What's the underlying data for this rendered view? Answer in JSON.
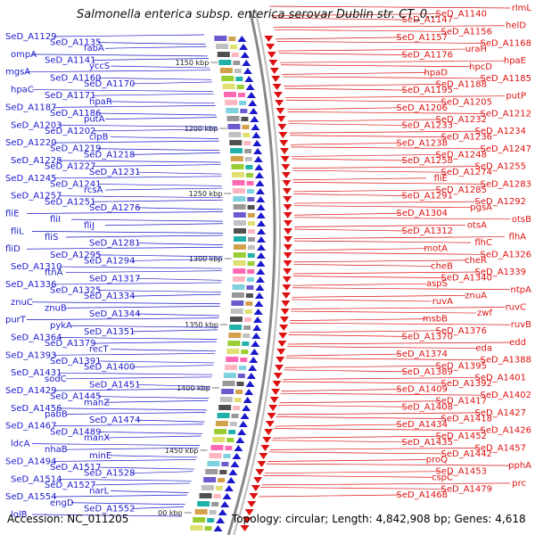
{
  "title": "Salmonella enterica subsp. enterica serovar Dublin str. CT_0...",
  "footer": {
    "accession": "Accession: NC_011205",
    "info": "Topology: circular; Length: 4,842,908 bp; Genes: 4,618"
  },
  "colors": {
    "left_strand": "#1a1acc",
    "right_strand": "#dd1111",
    "backbone": "#888888"
  },
  "kbp_markers": [
    "1150 kbp",
    "1200 kbp",
    "1250 kbp",
    "1300 kbp",
    "1350 kbp",
    "1400 kbp",
    "1450 kbp",
    "00 kbp"
  ],
  "left_labels": [
    "SeD_A1129",
    "SeD_A1135",
    "fabA",
    "ompA",
    "SeD_A1141",
    "yccS",
    "mgsA",
    "SeD_A1160",
    "SeD_A1170",
    "hpaC",
    "SeD_A1171",
    "hpaR",
    "SeD_A1187",
    "SeD_A1186",
    "putA",
    "SeD_A1203",
    "SeD_A1202",
    "clpB",
    "SeD_A1220",
    "SeD_A1219",
    "SeD_A1218",
    "SeD_A1228",
    "SeD_A1227",
    "SeD_A1231",
    "SeD_A1245",
    "SeD_A1241",
    "rcsA",
    "SeD_A1257",
    "SeD_A1251",
    "SeD_A1276",
    "fliE",
    "fliI",
    "fliJ",
    "fliL",
    "fliS",
    "SeD_A1281",
    "fliD",
    "SeD_A1295",
    "SeD_A1294",
    "SeD_A1310",
    "ftnA",
    "SeD_A1317",
    "SeD_A1336",
    "SeD_A1325",
    "SeD_A1334",
    "znuC",
    "znuB",
    "SeD_A1344",
    "purT",
    "pykA",
    "SeD_A1351",
    "SeD_A1364",
    "SeD_A1379",
    "recT",
    "SeD_A1393",
    "SeD_A1391",
    "SeD_A1400",
    "SeD_A1431",
    "sodC",
    "SeD_A1451",
    "SeD_A1429",
    "SeD_A1445",
    "manZ",
    "SeD_A1456",
    "pabB",
    "SeD_A1474",
    "SeD_A1467",
    "SeD_A1489",
    "manX",
    "ldcA",
    "nhaB",
    "minE",
    "SeD_A1494",
    "SeD_A1517",
    "SeD_A1528",
    "SeD_A1514",
    "SeD_A1527",
    "narL",
    "SeD_A1554",
    "engD",
    "SeD_A1552",
    "lolB"
  ],
  "right_labels": [
    "rlmL",
    "SeD_A1140",
    "SeD_A1147",
    "helD",
    "SeD_A1156",
    "SeD_A1157",
    "SeD_A1168",
    "uraH",
    "SeD_A1176",
    "hpaE",
    "hpcD",
    "hpaD",
    "SeD_A1185",
    "SeD_A1188",
    "SeD_A1195",
    "putP",
    "SeD_A1205",
    "SeD_A1206",
    "SeD_A1212",
    "SeD_A1232",
    "SeD_A1233",
    "SeD_A1234",
    "SeD_A1236",
    "SeD_A1238",
    "SeD_A1247",
    "SeD_A1248",
    "SeD_A1258",
    "SeD_A1255",
    "SeD_A1274",
    "fliE",
    "SeD_A1283",
    "SeD_A1285",
    "SeD_A1291",
    "SeD_A1292",
    "pgsA",
    "SeD_A1304",
    "otsB",
    "otsA",
    "SeD_A1312",
    "flhA",
    "flhC",
    "motA",
    "SeD_A1326",
    "cheR",
    "cheB",
    "SeD_A1339",
    "SeD_A1340",
    "aspS",
    "ntpA",
    "znuA",
    "ruvA",
    "ruvC",
    "zwf",
    "msbB",
    "ruvB",
    "SeD_A1376",
    "SeD_A1370",
    "edd",
    "eda",
    "SeD_A1374",
    "SeD_A1388",
    "SeD_A1395",
    "SeD_A1389",
    "SeD_A1401",
    "SeD_A1392",
    "SeD_A1409",
    "SeD_A1402",
    "SeD_A1417",
    "SeD_A1408",
    "SeD_A1427",
    "SeD_A1418",
    "SeD_A1434",
    "SeD_A1426",
    "SeD_A1452",
    "SeD_A1435",
    "SeD_A1457",
    "SeD_A1442",
    "proQ",
    "pphA",
    "SeD_A1453",
    "cspC",
    "prc",
    "SeD_A1479",
    "SeD_A1468"
  ]
}
